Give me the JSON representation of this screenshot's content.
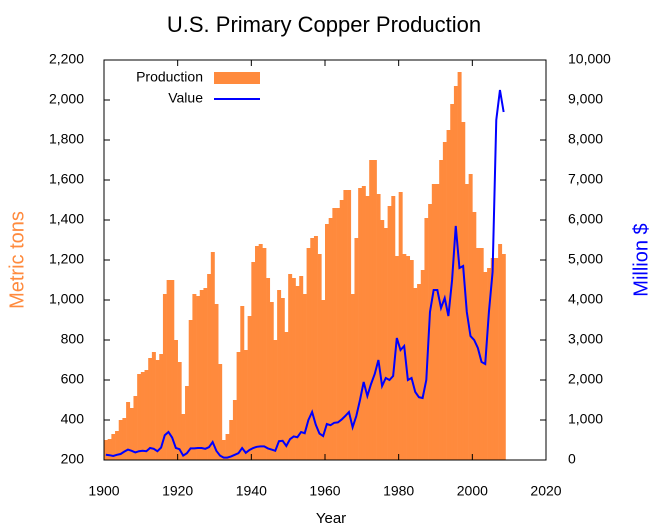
{
  "chart_data": {
    "type": "bar-line",
    "title": "U.S. Primary Copper Production",
    "x_label": "Year",
    "y_label": "Metric tons",
    "y2_label": "Million $",
    "x": [
      1900,
      1901,
      1902,
      1903,
      1904,
      1905,
      1906,
      1907,
      1908,
      1909,
      1910,
      1911,
      1912,
      1913,
      1914,
      1915,
      1916,
      1917,
      1918,
      1919,
      1920,
      1921,
      1922,
      1923,
      1924,
      1925,
      1926,
      1927,
      1928,
      1929,
      1930,
      1931,
      1932,
      1933,
      1934,
      1935,
      1936,
      1937,
      1938,
      1939,
      1940,
      1941,
      1942,
      1943,
      1944,
      1945,
      1946,
      1947,
      1948,
      1949,
      1950,
      1951,
      1952,
      1953,
      1954,
      1955,
      1956,
      1957,
      1958,
      1959,
      1960,
      1961,
      1962,
      1963,
      1964,
      1965,
      1966,
      1967,
      1968,
      1969,
      1970,
      1971,
      1972,
      1973,
      1974,
      1975,
      1976,
      1977,
      1978,
      1979,
      1980,
      1981,
      1982,
      1983,
      1984,
      1985,
      1986,
      1987,
      1988,
      1989,
      1990,
      1991,
      1992,
      1993,
      1994,
      1995,
      1996,
      1997,
      1998,
      1999,
      2000,
      2001,
      2002,
      2003,
      2004,
      2005,
      2006,
      2007,
      2008
    ],
    "series": [
      {
        "name": "Production",
        "kind": "bar",
        "color": "#ff8a3d",
        "values": [
          300,
          305,
          330,
          345,
          400,
          410,
          490,
          460,
          520,
          630,
          640,
          650,
          710,
          740,
          700,
          730,
          1030,
          1100,
          1100,
          800,
          690,
          430,
          570,
          900,
          1030,
          1020,
          1050,
          1060,
          1130,
          1240,
          980,
          680,
          300,
          330,
          400,
          500,
          740,
          970,
          750,
          920,
          1190,
          1270,
          1280,
          1260,
          1110,
          990,
          800,
          1050,
          1010,
          840,
          1130,
          1110,
          1070,
          1120,
          1030,
          1260,
          1310,
          1320,
          1230,
          1000,
          1380,
          1410,
          1460,
          1460,
          1500,
          1550,
          1550,
          1030,
          1310,
          1560,
          1570,
          1520,
          1700,
          1700,
          1530,
          1400,
          1360,
          1470,
          1520,
          1220,
          1540,
          1230,
          1220,
          1200,
          1060,
          1080,
          1150,
          1410,
          1480,
          1580,
          1580,
          1700,
          1790,
          1850,
          1980,
          2070,
          2140,
          1890,
          1580,
          1630,
          1440,
          1260,
          1260,
          1140,
          1160,
          1210,
          1210,
          1280,
          1230
        ]
      },
      {
        "name": "Value",
        "kind": "line",
        "axis": "y2",
        "color": "#0000ff",
        "values": [
          130,
          120,
          100,
          130,
          150,
          210,
          260,
          230,
          190,
          220,
          230,
          220,
          300,
          280,
          220,
          310,
          620,
          700,
          560,
          300,
          270,
          110,
          170,
          290,
          290,
          300,
          300,
          280,
          320,
          450,
          230,
          110,
          60,
          60,
          90,
          130,
          170,
          300,
          180,
          250,
          300,
          330,
          340,
          340,
          290,
          260,
          230,
          470,
          480,
          350,
          520,
          590,
          570,
          700,
          670,
          1000,
          1200,
          880,
          660,
          600,
          900,
          870,
          930,
          940,
          1010,
          1100,
          1200,
          820,
          1100,
          1500,
          1950,
          1600,
          1900,
          2150,
          2500,
          1850,
          2050,
          2000,
          2100,
          3050,
          2750,
          2850,
          2000,
          2050,
          1700,
          1570,
          1550,
          2000,
          3700,
          4250,
          4250,
          3800,
          4050,
          3600,
          4500,
          5850,
          4800,
          4850,
          3700,
          3100,
          3000,
          2800,
          2450,
          2400,
          3700,
          4700,
          8500,
          9250,
          8700
        ]
      }
    ],
    "xlim": [
      1900,
      2020
    ],
    "xticks": [
      1900,
      1920,
      1940,
      1960,
      1980,
      2000,
      2020
    ],
    "ylim": [
      200,
      2200
    ],
    "yticks": [
      200,
      400,
      600,
      800,
      {
        "value": 1000,
        "label": "1,000"
      },
      {
        "value": 1200,
        "label": "1,200"
      },
      {
        "value": 1400,
        "label": "1,400"
      },
      {
        "value": 1600,
        "label": "1,600"
      },
      {
        "value": 1800,
        "label": "1,800"
      },
      {
        "value": 2000,
        "label": "2,000"
      },
      {
        "value": 2200,
        "label": "2,200"
      }
    ],
    "y2lim": [
      0,
      10000
    ],
    "y2ticks": [
      0,
      {
        "value": 1000,
        "label": "1,000"
      },
      {
        "value": 2000,
        "label": "2,000"
      },
      {
        "value": 3000,
        "label": "3,000"
      },
      {
        "value": 4000,
        "label": "4,000"
      },
      {
        "value": 5000,
        "label": "5,000"
      },
      {
        "value": 6000,
        "label": "6,000"
      },
      {
        "value": 7000,
        "label": "7,000"
      },
      {
        "value": 8000,
        "label": "8,000"
      },
      {
        "value": 9000,
        "label": "9,000"
      },
      {
        "value": 10000,
        "label": "10,000"
      }
    ],
    "y_label_color": "#ff8a3d",
    "y2_label_color": "#0000ff",
    "legend": "upper left",
    "grid": false
  }
}
